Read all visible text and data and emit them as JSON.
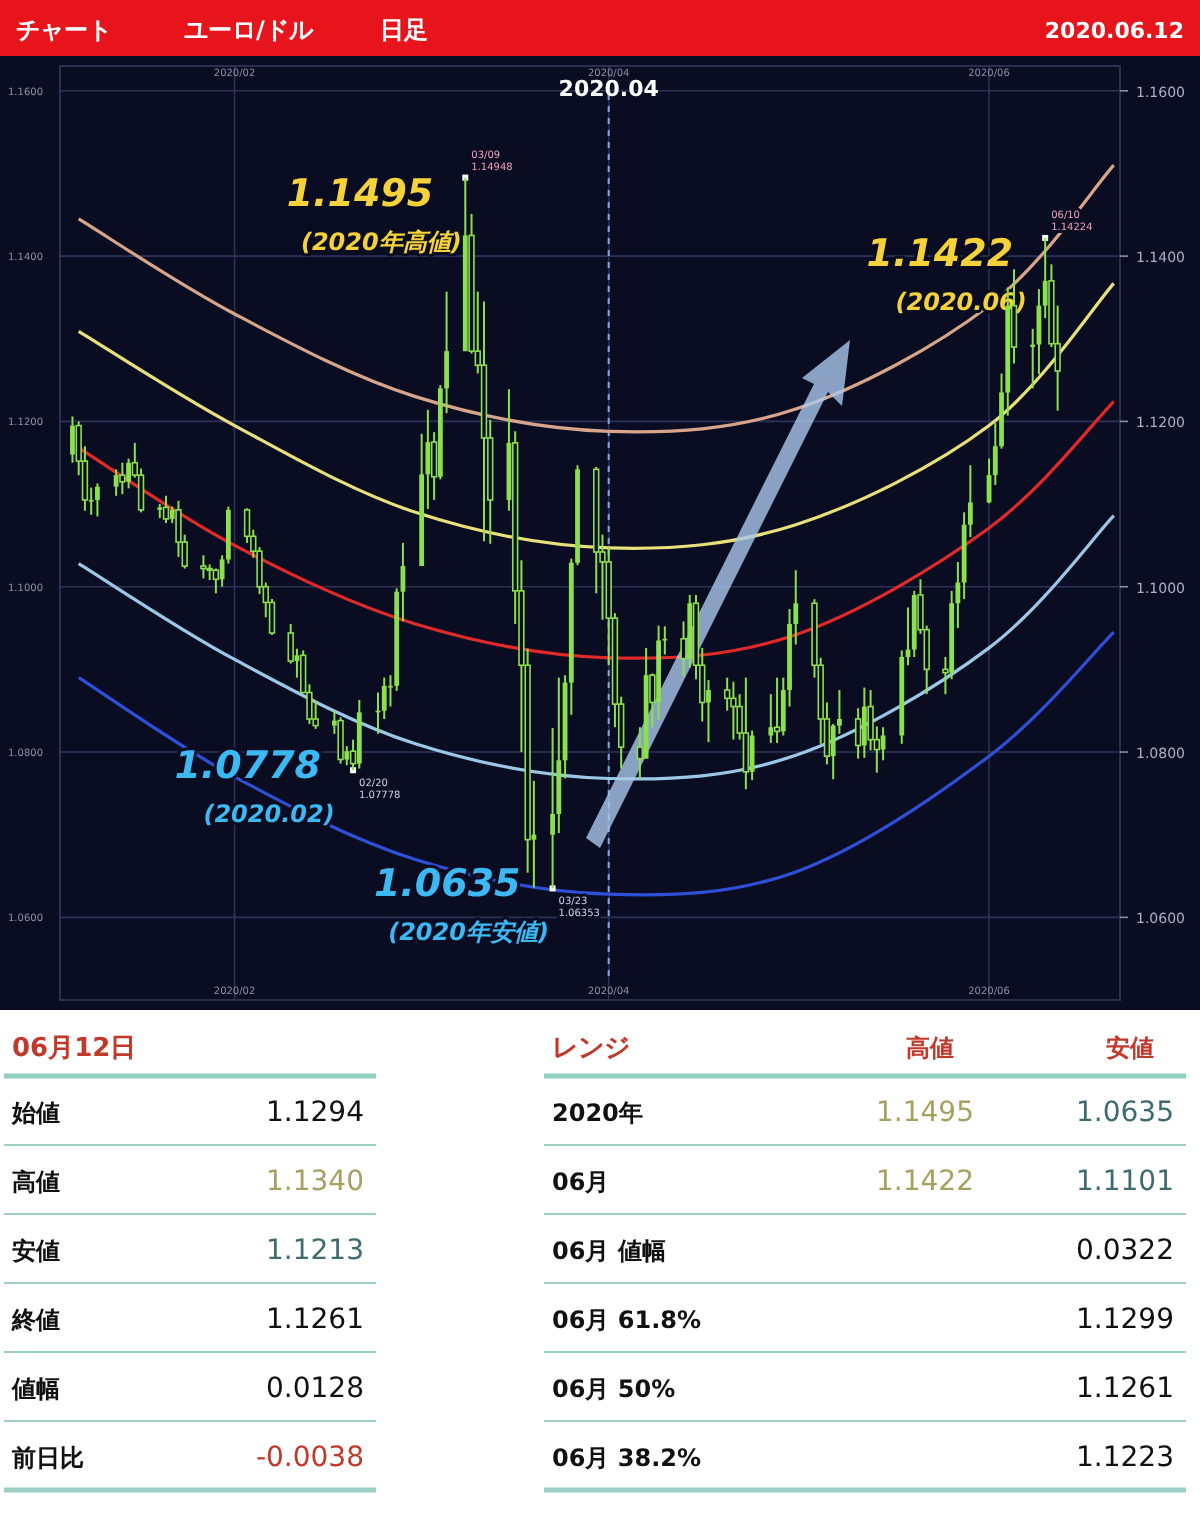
{
  "chart_data": [
    {
      "type": "candlestick",
      "title": "チャート",
      "subtitle": "ユーロ/ドル",
      "color": "#8be04e",
      "x": [
        "2020-01-06",
        "2020-01-07",
        "2020-01-08",
        "2020-01-09",
        "2020-01-10",
        "2020-01-13",
        "2020-01-14",
        "2020-01-15",
        "2020-01-16",
        "2020-01-17",
        "2020-01-20",
        "2020-01-21",
        "2020-01-22",
        "2020-01-23",
        "2020-01-24",
        "2020-01-27",
        "2020-01-28",
        "2020-01-29",
        "2020-01-30",
        "2020-01-31",
        "2020-02-03",
        "2020-02-04",
        "2020-02-05",
        "2020-02-06",
        "2020-02-07",
        "2020-02-10",
        "2020-02-11",
        "2020-02-12",
        "2020-02-13",
        "2020-02-14",
        "2020-02-17",
        "2020-02-18",
        "2020-02-19",
        "2020-02-20",
        "2020-02-21",
        "2020-02-24",
        "2020-02-25",
        "2020-02-26",
        "2020-02-27",
        "2020-02-28",
        "2020-03-02",
        "2020-03-03",
        "2020-03-04",
        "2020-03-05",
        "2020-03-06",
        "2020-03-09",
        "2020-03-10",
        "2020-03-11",
        "2020-03-12",
        "2020-03-13",
        "2020-03-16",
        "2020-03-17",
        "2020-03-18",
        "2020-03-19",
        "2020-03-20",
        "2020-03-23",
        "2020-03-24",
        "2020-03-25",
        "2020-03-26",
        "2020-03-27",
        "2020-03-30",
        "2020-03-31",
        "2020-04-01",
        "2020-04-02",
        "2020-04-03",
        "2020-04-06",
        "2020-04-07",
        "2020-04-08",
        "2020-04-09",
        "2020-04-10",
        "2020-04-13",
        "2020-04-14",
        "2020-04-15",
        "2020-04-16",
        "2020-04-17",
        "2020-04-20",
        "2020-04-21",
        "2020-04-22",
        "2020-04-23",
        "2020-04-24",
        "2020-04-27",
        "2020-04-28",
        "2020-04-29",
        "2020-04-30",
        "2020-05-01",
        "2020-05-04",
        "2020-05-05",
        "2020-05-06",
        "2020-05-07",
        "2020-05-08",
        "2020-05-11",
        "2020-05-12",
        "2020-05-13",
        "2020-05-14",
        "2020-05-15",
        "2020-05-18",
        "2020-05-19",
        "2020-05-20",
        "2020-05-21",
        "2020-05-22",
        "2020-05-25",
        "2020-05-26",
        "2020-05-27",
        "2020-05-28",
        "2020-05-29",
        "2020-06-01",
        "2020-06-02",
        "2020-06-03",
        "2020-06-04",
        "2020-06-05",
        "2020-06-08",
        "2020-06-09",
        "2020-06-10",
        "2020-06-11",
        "2020-06-12"
      ],
      "ohlc": [
        [
          1.116,
          1.1206,
          1.115,
          1.1195
        ],
        [
          1.1195,
          1.12,
          1.1135,
          1.1152
        ],
        [
          1.1152,
          1.117,
          1.1092,
          1.1105
        ],
        [
          1.1105,
          1.112,
          1.1087,
          1.1105
        ],
        [
          1.1105,
          1.1125,
          1.1085,
          1.1121
        ],
        [
          1.1121,
          1.1142,
          1.111,
          1.1135
        ],
        [
          1.1135,
          1.115,
          1.1112,
          1.1127
        ],
        [
          1.1127,
          1.1155,
          1.1119,
          1.115
        ],
        [
          1.115,
          1.1174,
          1.1132,
          1.1135
        ],
        [
          1.1135,
          1.1143,
          1.109,
          1.1093
        ],
        [
          1.1093,
          1.11,
          1.1083,
          1.1096
        ],
        [
          1.1096,
          1.111,
          1.1077,
          1.1082
        ],
        [
          1.1082,
          1.1097,
          1.1077,
          1.1093
        ],
        [
          1.1093,
          1.1104,
          1.1036,
          1.1054
        ],
        [
          1.1054,
          1.1063,
          1.1022,
          1.1025
        ],
        [
          1.1025,
          1.1038,
          1.101,
          1.1022
        ],
        [
          1.1022,
          1.1027,
          1.1008,
          1.102
        ],
        [
          1.102,
          1.1022,
          1.0992,
          1.1009
        ],
        [
          1.1009,
          1.1038,
          1.1,
          1.1033
        ],
        [
          1.1033,
          1.1097,
          1.1028,
          1.1093
        ],
        [
          1.1093,
          1.1095,
          1.1053,
          1.1061
        ],
        [
          1.1061,
          1.1069,
          1.1035,
          1.1043
        ],
        [
          1.1043,
          1.1048,
          1.0991,
          1.1
        ],
        [
          1.1,
          1.1005,
          1.0963,
          1.0981
        ],
        [
          1.0981,
          1.0985,
          1.0942,
          1.0944
        ],
        [
          1.0944,
          1.0955,
          1.0907,
          1.091
        ],
        [
          1.091,
          1.0925,
          1.089,
          1.0917
        ],
        [
          1.0917,
          1.0923,
          1.0871,
          1.0872
        ],
        [
          1.0872,
          1.0882,
          1.0834,
          1.084
        ],
        [
          1.084,
          1.0862,
          1.0828,
          1.0832
        ],
        [
          1.0832,
          1.085,
          1.0822,
          1.0838
        ],
        [
          1.0838,
          1.0842,
          1.0786,
          1.0791
        ],
        [
          1.0791,
          1.0807,
          1.0784,
          1.0801
        ],
        [
          1.0801,
          1.0815,
          1.0778,
          1.0786
        ],
        [
          1.0786,
          1.0863,
          1.078,
          1.0848
        ],
        [
          1.0848,
          1.0872,
          1.0822,
          1.085
        ],
        [
          1.085,
          1.089,
          1.084,
          1.088
        ],
        [
          1.088,
          1.0893,
          1.0855,
          1.088
        ],
        [
          1.088,
          1.0998,
          1.0874,
          1.0994
        ],
        [
          1.0994,
          1.1053,
          1.0958,
          1.1025
        ],
        [
          1.1025,
          1.1185,
          1.1025,
          1.1136
        ],
        [
          1.1136,
          1.1214,
          1.1094,
          1.1175
        ],
        [
          1.1175,
          1.1187,
          1.1105,
          1.1133
        ],
        [
          1.1133,
          1.1244,
          1.113,
          1.124
        ],
        [
          1.124,
          1.1357,
          1.121,
          1.1285
        ],
        [
          1.1285,
          1.1495,
          1.1285,
          1.1425
        ],
        [
          1.1425,
          1.1451,
          1.1282,
          1.1285
        ],
        [
          1.1285,
          1.1357,
          1.1258,
          1.1268
        ],
        [
          1.1268,
          1.1345,
          1.1055,
          1.118
        ],
        [
          1.118,
          1.1202,
          1.1052,
          1.1105
        ],
        [
          1.1105,
          1.1239,
          1.1092,
          1.1174
        ],
        [
          1.1174,
          1.1188,
          1.0955,
          1.0995
        ],
        [
          1.0995,
          1.1032,
          1.08,
          1.0905
        ],
        [
          1.0905,
          1.0925,
          1.0654,
          1.0694
        ],
        [
          1.0694,
          1.0765,
          1.0636,
          1.07
        ],
        [
          1.07,
          1.0829,
          1.0635,
          1.0725
        ],
        [
          1.0725,
          1.089,
          1.0702,
          1.079
        ],
        [
          1.079,
          1.0893,
          1.0768,
          1.0884
        ],
        [
          1.0884,
          1.1034,
          1.0845,
          1.1029
        ],
        [
          1.1029,
          1.1147,
          1.1026,
          1.1142
        ],
        [
          1.1142,
          1.1145,
          1.0992,
          1.1042
        ],
        [
          1.1042,
          1.1063,
          1.096,
          1.103
        ],
        [
          1.103,
          1.1047,
          1.0905,
          1.0962
        ],
        [
          1.0962,
          1.0968,
          1.083,
          1.0858
        ],
        [
          1.0858,
          1.0867,
          1.078,
          1.0806
        ],
        [
          1.0806,
          1.083,
          1.0768,
          1.0792
        ],
        [
          1.0792,
          1.0926,
          1.0792,
          1.0893
        ],
        [
          1.0893,
          1.0895,
          1.083,
          1.086
        ],
        [
          1.086,
          1.0953,
          1.0839,
          1.0935
        ],
        [
          1.0935,
          1.0952,
          1.0918,
          1.0937
        ],
        [
          1.0937,
          1.0958,
          1.0891,
          1.0913
        ],
        [
          1.0913,
          1.099,
          1.0902,
          1.098
        ],
        [
          1.098,
          1.099,
          1.0888,
          1.0905
        ],
        [
          1.0905,
          1.0926,
          1.0837,
          1.086
        ],
        [
          1.086,
          1.0887,
          1.0812,
          1.0875
        ],
        [
          1.0875,
          1.089,
          1.085,
          1.0865
        ],
        [
          1.0865,
          1.0885,
          1.0815,
          1.0855
        ],
        [
          1.0855,
          1.087,
          1.0815,
          1.0823
        ],
        [
          1.0823,
          1.089,
          1.0755,
          1.0776
        ],
        [
          1.0776,
          1.0826,
          1.0766,
          1.082
        ],
        [
          1.082,
          1.087,
          1.0811,
          1.083
        ],
        [
          1.083,
          1.089,
          1.0811,
          1.0825
        ],
        [
          1.0825,
          1.089,
          1.082,
          1.0875
        ],
        [
          1.0875,
          1.0973,
          1.0855,
          1.0955
        ],
        [
          1.0955,
          1.102,
          1.093,
          1.098
        ],
        [
          1.098,
          1.0985,
          1.089,
          1.0905
        ],
        [
          1.0905,
          1.0914,
          1.081,
          1.084
        ],
        [
          1.084,
          1.086,
          1.0785,
          1.0795
        ],
        [
          1.0795,
          1.0834,
          1.0767,
          1.0832
        ],
        [
          1.0832,
          1.0875,
          1.0822,
          1.084
        ],
        [
          1.084,
          1.0853,
          1.0792,
          1.0808
        ],
        [
          1.0808,
          1.0878,
          1.0793,
          1.0855
        ],
        [
          1.0855,
          1.0875,
          1.0802,
          1.0815
        ],
        [
          1.0815,
          1.0831,
          1.0775,
          1.0803
        ],
        [
          1.0803,
          1.083,
          1.079,
          1.082
        ],
        [
          1.082,
          1.0923,
          1.081,
          1.0915
        ],
        [
          1.0915,
          1.0975,
          1.0905,
          1.0924
        ],
        [
          1.0924,
          1.0995,
          1.0915,
          1.099
        ],
        [
          1.099,
          1.1009,
          1.0943,
          1.0948
        ],
        [
          1.0948,
          1.0953,
          1.087,
          1.09
        ],
        [
          1.09,
          1.0915,
          1.087,
          1.0896
        ],
        [
          1.0896,
          1.0995,
          1.0888,
          1.098
        ],
        [
          1.098,
          1.103,
          1.095,
          1.1005
        ],
        [
          1.1005,
          1.109,
          1.0985,
          1.1075
        ],
        [
          1.1075,
          1.1147,
          1.106,
          1.1102
        ],
        [
          1.1102,
          1.1155,
          1.1101,
          1.1135
        ],
        [
          1.1135,
          1.1198,
          1.1123,
          1.117
        ],
        [
          1.117,
          1.1258,
          1.1167,
          1.1235
        ],
        [
          1.1235,
          1.1362,
          1.1207,
          1.134
        ],
        [
          1.134,
          1.1384,
          1.127,
          1.129
        ],
        [
          1.129,
          1.1312,
          1.124,
          1.1293
        ],
        [
          1.1293,
          1.136,
          1.1257,
          1.134
        ],
        [
          1.134,
          1.1422,
          1.1325,
          1.137
        ],
        [
          1.137,
          1.139,
          1.129,
          1.1294
        ],
        [
          1.1294,
          1.134,
          1.1213,
          1.1261
        ]
      ],
      "series": [
        {
          "type": "line",
          "color": "#d9a58a",
          "x": [
            "2020-01-07",
            "2020-02-01",
            "2020-03-01",
            "2020-04-01",
            "2020-05-01",
            "2020-06-01",
            "2020-06-21"
          ],
          "values": [
            1.1445,
            1.133,
            1.123,
            1.1188,
            1.1215,
            1.134,
            1.151
          ]
        },
        {
          "type": "line",
          "color": "#e8e07a",
          "x": [
            "2020-01-07",
            "2020-02-01",
            "2020-03-01",
            "2020-04-01",
            "2020-05-01",
            "2020-06-01",
            "2020-06-21"
          ],
          "values": [
            1.1309,
            1.1195,
            1.109,
            1.1047,
            1.1075,
            1.1195,
            1.1367
          ]
        },
        {
          "type": "line",
          "color": "#e02a2a",
          "x": [
            "2020-01-07",
            "2020-02-01",
            "2020-03-01",
            "2020-04-01",
            "2020-05-01",
            "2020-06-01",
            "2020-06-21"
          ],
          "values": [
            1.1168,
            1.105,
            1.0955,
            1.0914,
            1.0942,
            1.1071,
            1.1224
          ]
        },
        {
          "type": "line",
          "color": "#9cc8e8",
          "x": [
            "2020-01-07",
            "2020-02-01",
            "2020-03-01",
            "2020-04-01",
            "2020-05-01",
            "2020-06-01",
            "2020-06-21"
          ],
          "values": [
            1.1028,
            1.0912,
            1.081,
            1.0768,
            1.0796,
            1.0926,
            1.1086
          ]
        },
        {
          "type": "line",
          "color": "#2f4fd8",
          "x": [
            "2020-01-07",
            "2020-02-01",
            "2020-03-01",
            "2020-04-01",
            "2020-05-01",
            "2020-06-01",
            "2020-06-21"
          ],
          "values": [
            1.089,
            1.077,
            1.067,
            1.0628,
            1.0655,
            1.0795,
            1.0945
          ]
        }
      ],
      "xlim": [
        "2020-01-04",
        "2020-06-22"
      ],
      "xticks": [
        {
          "value": "2020-02-01",
          "label": "2020/02"
        },
        {
          "value": "2020-04-01",
          "label": "2020/04"
        },
        {
          "value": "2020-06-01",
          "label": "2020/06"
        }
      ],
      "x2lim": [
        "2020-01-04",
        "2020-06-22"
      ],
      "x2ticks": [
        {
          "value": "2020-02-01",
          "label": "2020/02"
        },
        {
          "value": "2020-04-01",
          "label": "2020/04"
        },
        {
          "value": "2020-06-01",
          "label": "2020/06"
        }
      ],
      "ylim": [
        1.05,
        1.163
      ],
      "yticks": [
        {
          "value": 1.06,
          "label": "1.0600"
        },
        {
          "value": 1.08,
          "label": "1.0800"
        },
        {
          "value": 1.1,
          "label": "1.1000"
        },
        {
          "value": 1.12,
          "label": "1.1200"
        },
        {
          "value": 1.14,
          "label": "1.1400"
        },
        {
          "value": 1.16,
          "label": "1.1600"
        }
      ],
      "y2lim": [
        1.05,
        1.163
      ],
      "y2ticks": [
        {
          "value": 1.06,
          "label": "1.0600"
        },
        {
          "value": 1.08,
          "label": "1.0800"
        },
        {
          "value": 1.1,
          "label": "1.1000"
        },
        {
          "value": 1.12,
          "label": "1.1200"
        },
        {
          "value": 1.14,
          "label": "1.1400"
        },
        {
          "value": 1.16,
          "label": "1.1600"
        }
      ],
      "grid": true,
      "ref_lines": [
        {
          "axis": "x",
          "value": "2020-04-01",
          "label": "2020.04",
          "color": "#7fa8e0",
          "line_style": "dashed"
        }
      ],
      "annotations": [
        "日足",
        "2020.06.12",
        {
          "text": "1.1495",
          "x": "2020-03-09",
          "y": 1.1495
        },
        {
          "text": "(2020年高値)",
          "x": "2020-03-09",
          "y": 1.1495
        },
        {
          "text": "03/09 1.14948",
          "x": "2020-03-09",
          "y": 1.1495
        },
        {
          "text": "1.0778",
          "x": "2020-02-20",
          "y": 1.0778
        },
        {
          "text": "(2020.02)",
          "x": "2020-02-20",
          "y": 1.0778
        },
        {
          "text": "02/20 1.07778",
          "x": "2020-02-20",
          "y": 1.0778
        },
        {
          "text": "1.0635",
          "x": "2020-03-23",
          "y": 1.0635
        },
        {
          "text": "(2020年安値)",
          "x": "2020-03-23",
          "y": 1.0635
        },
        {
          "text": "03/23 1.06353",
          "x": "2020-03-23",
          "y": 1.0635
        },
        {
          "text": "1.1422",
          "x": "2020-06-10",
          "y": 1.1422
        },
        {
          "text": "(2020.06)",
          "x": "2020-06-10",
          "y": 1.1422
        },
        {
          "text": "06/10 1.14224",
          "x": "2020-06-10",
          "y": 1.1422
        }
      ]
    },
    {
      "type": "other",
      "title": "06月12日",
      "categories": [
        "始値",
        "高値",
        "安値",
        "終値",
        "値幅",
        "前日比"
      ],
      "series": [
        {
          "values": [
            1.1294,
            1.134,
            1.1213,
            1.1261,
            0.0128,
            -0.0038
          ],
          "value_labels": [
            "1.1294",
            "1.1340",
            "1.1213",
            "1.1261",
            "0.0128",
            "-0.0038"
          ],
          "colors": [
            "#111111",
            "#a8a060",
            "#3d6b70",
            "#111111",
            "#111111",
            "#c0392b"
          ]
        }
      ]
    },
    {
      "type": "other",
      "title": "レンジ",
      "categories": [
        "2020年",
        "06月",
        "06月 値幅",
        "06月 61.8%",
        "06月 50%",
        "06月 38.2%"
      ],
      "series": [
        {
          "name": "高値",
          "values": [
            1.1495,
            1.1422,
            null,
            null,
            null,
            null
          ],
          "value_labels": [
            "1.1495",
            "1.1422",
            null,
            null,
            null,
            null
          ],
          "colors": [
            "#a8a060",
            "#a8a060",
            null,
            null,
            null,
            null
          ]
        },
        {
          "name": "安値",
          "values": [
            1.0635,
            1.1101,
            0.0322,
            1.1299,
            1.1261,
            1.1223
          ],
          "value_labels": [
            "1.0635",
            "1.1101",
            "0.0322",
            "1.1299",
            "1.1261",
            "1.1223"
          ],
          "colors": [
            "#3d6b70",
            "#3d6b70",
            "#111111",
            "#111111",
            "#111111",
            "#111111"
          ]
        }
      ]
    }
  ]
}
